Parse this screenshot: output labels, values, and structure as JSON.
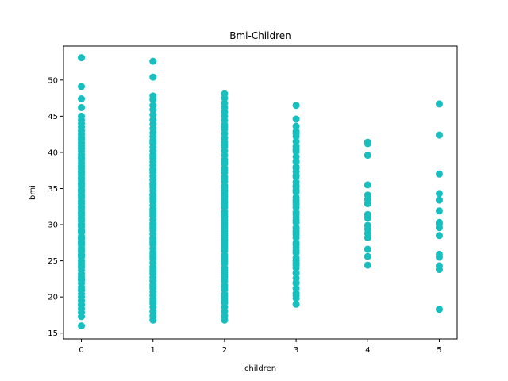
{
  "chart_data": {
    "type": "scatter",
    "title": "Bmi-Children",
    "xlabel": "children",
    "ylabel": "bmi",
    "xlim": [
      -0.25,
      5.25
    ],
    "ylim": [
      14.2,
      54.7
    ],
    "xticks": [
      0,
      1,
      2,
      3,
      4,
      5
    ],
    "yticks": [
      15,
      20,
      25,
      30,
      35,
      40,
      45,
      50
    ],
    "grid": false,
    "legend": "none",
    "color": "#17bfbf",
    "series": [
      {
        "x": [
          0,
          0,
          0,
          0,
          0,
          0,
          0,
          0,
          0,
          0,
          0,
          0,
          0,
          0,
          0,
          0,
          0,
          0,
          0,
          0,
          0,
          0,
          0,
          0,
          0,
          0,
          0,
          0,
          0,
          0,
          0,
          0,
          0,
          0,
          0,
          0,
          0,
          0,
          0,
          0,
          0,
          0,
          0,
          0,
          0,
          0,
          0,
          0,
          0,
          0,
          0,
          0,
          0,
          0,
          0,
          0,
          0,
          0,
          0,
          0,
          0,
          0,
          0,
          0,
          0,
          0,
          0,
          0,
          0,
          0,
          0,
          0,
          0,
          0,
          0,
          0,
          0,
          0,
          0,
          0,
          0,
          0,
          0,
          0,
          0,
          0,
          0,
          0,
          0,
          0,
          0,
          0,
          0,
          1,
          1,
          1,
          1,
          1,
          1,
          1,
          1,
          1,
          1,
          1,
          1,
          1,
          1,
          1,
          1,
          1,
          1,
          1,
          1,
          1,
          1,
          1,
          1,
          1,
          1,
          1,
          1,
          1,
          1,
          1,
          1,
          1,
          1,
          1,
          1,
          1,
          1,
          1,
          1,
          1,
          1,
          1,
          1,
          1,
          1,
          1,
          1,
          1,
          1,
          1,
          1,
          1,
          1,
          1,
          1,
          1,
          1,
          1,
          1,
          1,
          1,
          1,
          1,
          1,
          1,
          1,
          1,
          1,
          1,
          1,
          1,
          1,
          1,
          1,
          1,
          1,
          1,
          1,
          1,
          2,
          2,
          2,
          2,
          2,
          2,
          2,
          2,
          2,
          2,
          2,
          2,
          2,
          2,
          2,
          2,
          2,
          2,
          2,
          2,
          2,
          2,
          2,
          2,
          2,
          2,
          2,
          2,
          2,
          2,
          2,
          2,
          2,
          2,
          2,
          2,
          2,
          2,
          2,
          2,
          2,
          2,
          2,
          2,
          2,
          2,
          2,
          2,
          2,
          2,
          2,
          2,
          2,
          2,
          2,
          2,
          2,
          2,
          2,
          2,
          2,
          2,
          2,
          2,
          2,
          2,
          2,
          2,
          2,
          2,
          2,
          2,
          2,
          2,
          2,
          2,
          2,
          2,
          2,
          2,
          3,
          3,
          3,
          3,
          3,
          3,
          3,
          3,
          3,
          3,
          3,
          3,
          3,
          3,
          3,
          3,
          3,
          3,
          3,
          3,
          3,
          3,
          3,
          3,
          3,
          3,
          3,
          3,
          3,
          3,
          3,
          3,
          3,
          3,
          3,
          3,
          3,
          3,
          3,
          3,
          3,
          3,
          3,
          3,
          3,
          3,
          3,
          3,
          3,
          3,
          3,
          3,
          3,
          3,
          3,
          3,
          3,
          4,
          4,
          4,
          4,
          4,
          4,
          4,
          4,
          4,
          4,
          4,
          4,
          4,
          4,
          4,
          4,
          4,
          5,
          5,
          5,
          5,
          5,
          5,
          5,
          5,
          5,
          5,
          5,
          5,
          5,
          5,
          5
        ],
        "y": [
          16.0,
          17.3,
          17.9,
          18.4,
          18.9,
          19.5,
          20.0,
          20.4,
          20.9,
          21.4,
          21.9,
          22.3,
          22.8,
          23.2,
          23.7,
          24.1,
          24.6,
          25.0,
          25.5,
          25.9,
          26.3,
          26.8,
          27.2,
          27.6,
          28.0,
          28.4,
          28.9,
          29.3,
          29.7,
          30.1,
          30.5,
          30.9,
          31.3,
          31.7,
          32.1,
          32.5,
          32.9,
          33.3,
          33.7,
          34.1,
          34.5,
          34.9,
          35.3,
          35.7,
          36.1,
          36.5,
          36.9,
          37.3,
          37.7,
          38.1,
          38.5,
          38.9,
          39.3,
          39.7,
          40.1,
          40.5,
          40.9,
          41.3,
          41.7,
          42.1,
          42.5,
          43.0,
          43.5,
          44.0,
          44.5,
          45.0,
          46.2,
          47.4,
          49.1,
          53.1,
          19.0,
          21.0,
          22.5,
          24.3,
          25.7,
          26.5,
          27.4,
          28.2,
          29.1,
          30.0,
          30.8,
          31.6,
          32.4,
          33.2,
          34.0,
          34.8,
          35.6,
          36.4,
          37.2,
          38.0,
          39.2,
          40.6,
          41.8,
          16.8,
          17.4,
          18.0,
          18.6,
          19.1,
          19.7,
          20.2,
          20.7,
          21.2,
          21.7,
          22.2,
          22.7,
          23.2,
          23.7,
          24.2,
          24.7,
          25.2,
          25.7,
          26.2,
          26.7,
          27.2,
          27.7,
          28.2,
          28.7,
          29.2,
          29.7,
          30.2,
          30.7,
          31.2,
          31.7,
          32.2,
          32.7,
          33.2,
          33.7,
          34.2,
          34.7,
          35.2,
          35.7,
          36.2,
          36.7,
          37.2,
          37.7,
          38.2,
          38.7,
          39.2,
          39.7,
          40.2,
          40.7,
          41.2,
          41.7,
          42.2,
          42.7,
          43.3,
          43.9,
          44.5,
          45.2,
          45.9,
          46.5,
          47.3,
          47.8,
          50.4,
          52.6,
          19.4,
          21.5,
          23.5,
          25.5,
          27.5,
          29.5,
          31.5,
          33.5,
          35.5,
          37.5,
          39.5,
          41.5,
          26.0,
          30.0,
          34.0,
          24.0,
          28.0,
          32.0,
          16.8,
          17.4,
          18.0,
          18.6,
          19.2,
          19.8,
          20.4,
          21.0,
          21.6,
          22.2,
          22.8,
          23.4,
          24.0,
          24.6,
          25.2,
          25.8,
          26.4,
          27.0,
          27.6,
          28.2,
          28.8,
          29.4,
          30.0,
          30.6,
          31.2,
          31.8,
          32.4,
          33.0,
          33.6,
          34.2,
          34.8,
          35.4,
          36.0,
          36.6,
          37.2,
          37.8,
          38.4,
          39.0,
          39.6,
          40.2,
          40.8,
          41.4,
          42.0,
          42.6,
          43.2,
          43.8,
          44.4,
          45.0,
          45.6,
          46.2,
          46.8,
          47.5,
          48.1,
          20.1,
          22.5,
          24.9,
          26.7,
          29.1,
          31.5,
          33.3,
          35.1,
          37.5,
          23.1,
          27.9,
          32.7,
          25.5,
          30.3,
          34.5,
          36.3,
          38.7,
          21.3,
          23.7,
          28.5,
          19.5,
          41.1,
          43.5,
          29.7,
          31.0,
          33.9,
          27.3,
          19.0,
          19.8,
          20.5,
          21.2,
          21.9,
          22.6,
          23.3,
          24.0,
          24.7,
          25.4,
          26.1,
          26.8,
          27.5,
          28.2,
          28.9,
          29.6,
          30.3,
          31.0,
          31.7,
          32.4,
          33.1,
          33.8,
          34.5,
          35.2,
          35.9,
          36.6,
          37.3,
          38.0,
          38.7,
          39.4,
          40.1,
          40.8,
          41.5,
          42.2,
          42.9,
          43.6,
          44.6,
          46.5,
          20.2,
          22.0,
          24.4,
          26.4,
          28.6,
          30.6,
          32.8,
          34.8,
          36.8,
          38.8,
          40.4,
          42.6,
          29.2,
          31.4,
          33.4,
          35.4,
          25.0,
          27.2,
          37.8,
          24.4,
          25.6,
          26.6,
          28.2,
          28.8,
          29.4,
          29.9,
          31.0,
          31.4,
          32.9,
          33.5,
          34.1,
          35.5,
          39.6,
          41.2,
          41.4,
          30.9,
          18.3,
          23.8,
          24.3,
          25.5,
          25.9,
          28.5,
          29.6,
          30.3,
          31.9,
          33.4,
          34.3,
          37.0,
          42.4,
          46.7,
          30.1
        ]
      }
    ]
  }
}
